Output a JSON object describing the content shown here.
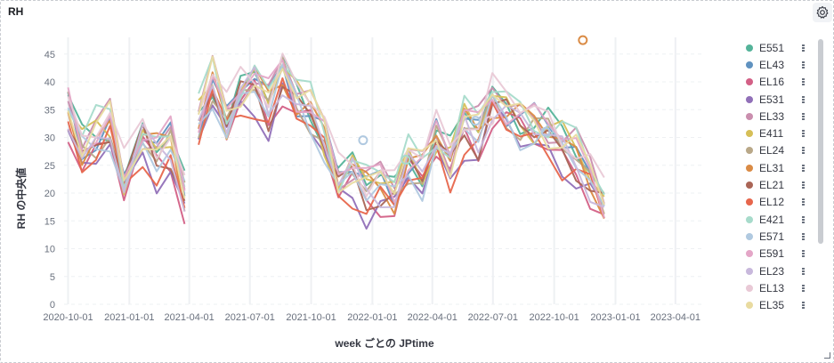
{
  "panel": {
    "title": "RH",
    "settings_icon": "gear-icon"
  },
  "chart_data": {
    "type": "line",
    "title": "RH",
    "xlabel": "week ごとの JPtime",
    "ylabel": "RH の中央値",
    "ylim": [
      0,
      48
    ],
    "yticks": [
      0,
      5,
      10,
      15,
      20,
      25,
      30,
      35,
      40,
      45
    ],
    "xlim": [
      "2020-09-25",
      "2023-05-10"
    ],
    "xticks": [
      "2020-10-01",
      "2021-01-01",
      "2021-04-01",
      "2021-07-01",
      "2021-10-01",
      "2022-01-01",
      "2022-04-01",
      "2022-07-01",
      "2022-10-01",
      "2023-01-01",
      "2023-04-01"
    ],
    "grid": true,
    "legend_position": "right",
    "median_series": {
      "x": [
        "2020-10-01",
        "2020-10-22",
        "2020-11-12",
        "2020-12-03",
        "2020-12-24",
        "2021-01-21",
        "2021-02-11",
        "2021-03-04",
        "2021-03-25",
        "2021-04-15",
        "2021-05-06",
        "2021-05-27",
        "2021-06-17",
        "2021-07-08",
        "2021-07-29",
        "2021-08-19",
        "2021-09-09",
        "2021-09-30",
        "2021-10-21",
        "2021-11-11",
        "2021-12-02",
        "2021-12-23",
        "2022-01-13",
        "2022-02-03",
        "2022-02-24",
        "2022-03-17",
        "2022-04-07",
        "2022-04-28",
        "2022-05-19",
        "2022-06-09",
        "2022-06-30",
        "2022-07-21",
        "2022-08-11",
        "2022-09-01",
        "2022-09-22",
        "2022-10-13",
        "2022-11-03",
        "2022-11-24",
        "2022-12-15"
      ],
      "y": [
        35,
        28,
        30,
        32,
        22,
        30,
        27,
        29,
        20,
        33,
        40,
        33,
        38,
        40,
        36,
        42,
        37,
        35,
        30,
        22,
        24,
        21,
        22,
        20,
        26,
        24,
        30,
        26,
        33,
        31,
        37,
        35,
        33,
        32,
        31,
        29,
        27,
        23,
        18
      ]
    },
    "series": [
      {
        "name": "E551",
        "color": "#54b399"
      },
      {
        "name": "EL43",
        "color": "#6092c0"
      },
      {
        "name": "EL16",
        "color": "#d36086"
      },
      {
        "name": "E531",
        "color": "#9170b8"
      },
      {
        "name": "EL33",
        "color": "#ca8eae"
      },
      {
        "name": "E411",
        "color": "#d6bf57"
      },
      {
        "name": "EL24",
        "color": "#b9a888"
      },
      {
        "name": "EL31",
        "color": "#da8b45"
      },
      {
        "name": "EL21",
        "color": "#aa6556"
      },
      {
        "name": "EL12",
        "color": "#e7664c"
      },
      {
        "name": "E421",
        "color": "#a7dbcb"
      },
      {
        "name": "E571",
        "color": "#b0c9e0"
      },
      {
        "name": "E591",
        "color": "#e4a6c7"
      },
      {
        "name": "EL23",
        "color": "#c8b8dc"
      },
      {
        "name": "EL13",
        "color": "#e9c9d6"
      },
      {
        "name": "EL35",
        "color": "#e9dba0"
      }
    ],
    "markers": [
      {
        "series": "EL31",
        "x": "2022-11-13",
        "y": 47.5
      },
      {
        "series": "E571",
        "x": "2021-12-18",
        "y": 29.5
      },
      {
        "series": "E421",
        "x": "2022-02-20",
        "y": 26
      },
      {
        "series": "E571",
        "x": "2022-06-05",
        "y": 33
      },
      {
        "series": "EL13",
        "x": "2022-06-26",
        "y": 33
      },
      {
        "series": "E571",
        "x": "2022-09-18",
        "y": 31
      }
    ]
  }
}
